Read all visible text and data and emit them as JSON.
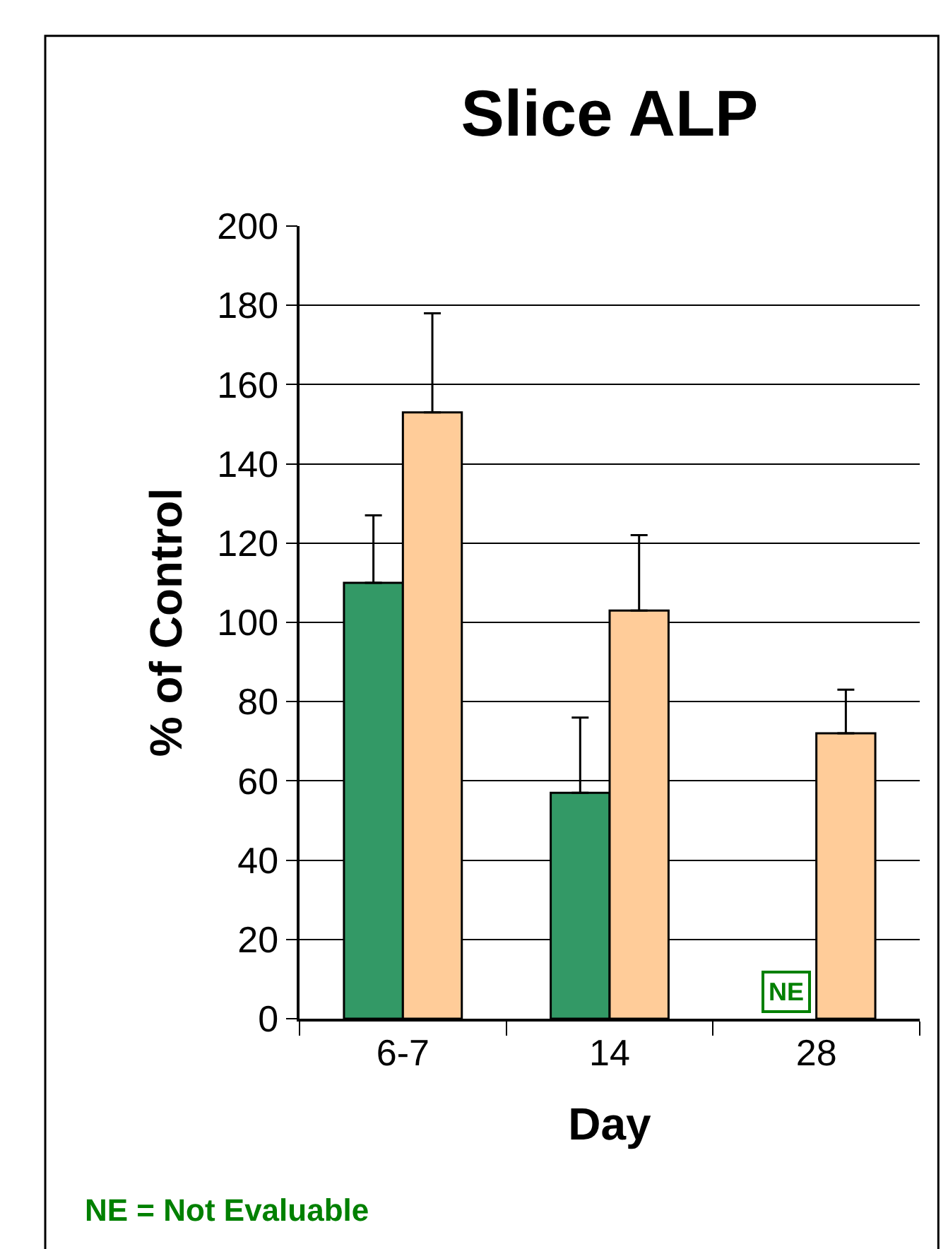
{
  "chart_data": {
    "type": "bar",
    "title": "Slice ALP",
    "xlabel": "Day",
    "ylabel": "% of Control",
    "categories": [
      "6-7",
      "14",
      "28"
    ],
    "series": [
      {
        "color": "#339966",
        "values": [
          110,
          57,
          null
        ],
        "errors": [
          [
            110,
            127
          ],
          [
            57,
            76
          ],
          null
        ]
      },
      {
        "color": "#ffcc99",
        "values": [
          153,
          103,
          72
        ],
        "errors": [
          [
            153,
            178
          ],
          [
            103,
            122
          ],
          [
            72,
            83
          ]
        ]
      }
    ],
    "ylim": [
      0,
      200
    ],
    "yticks": [
      0,
      20,
      40,
      60,
      80,
      100,
      120,
      140,
      160,
      180,
      200
    ],
    "grid": "y",
    "annotations": [
      {
        "text": "NE",
        "x": "28",
        "y": 0
      },
      "NE = Not Evaluable"
    ]
  }
}
